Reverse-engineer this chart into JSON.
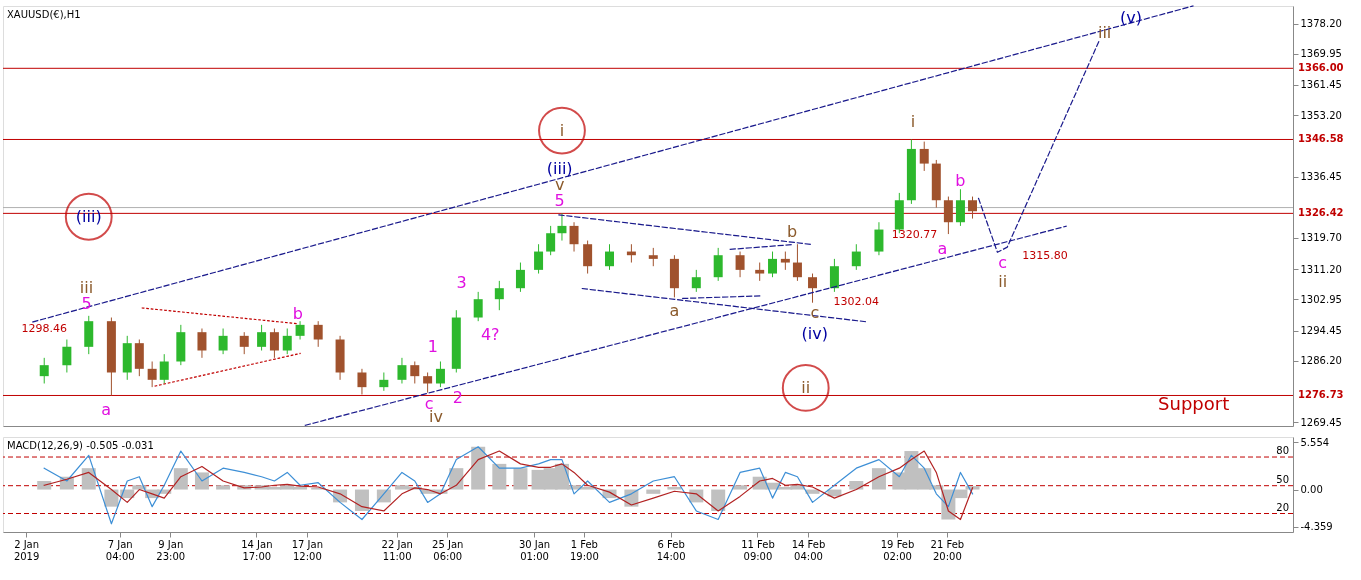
{
  "chart_data": [
    {
      "type": "candlestick",
      "title": "XAUUSD(€),H1",
      "x": [
        "2019-01-03T00:00",
        "2019-01-04T06:00",
        "2019-01-05T11:00",
        "2019-01-06T17:00",
        "2019-01-07T14:00",
        "2019-01-08T06:00",
        "2019-01-08T23:00",
        "2019-01-09T15:00",
        "2019-01-10T13:00",
        "2019-01-11T17:00",
        "2019-01-12T21:00",
        "2019-01-14T01:00",
        "2019-01-15T00:00",
        "2019-01-15T17:00",
        "2019-01-16T10:00",
        "2019-01-17T03:00",
        "2019-01-18T03:00",
        "2019-01-19T08:00",
        "2019-01-20T13:00",
        "2019-01-21T18:00",
        "2019-01-22T18:00",
        "2019-01-23T11:00",
        "2019-01-24T04:00",
        "2019-01-24T21:00",
        "2019-01-25T18:00",
        "2019-01-26T23:00",
        "2019-01-28T03:00",
        "2019-01-29T07:00",
        "2019-01-30T07:00",
        "2019-01-30T23:00",
        "2019-01-31T14:00",
        "2019-02-01T06:00",
        "2019-02-02T00:00",
        "2019-02-03T05:00",
        "2019-02-04T10:00",
        "2019-02-05T15:00",
        "2019-02-06T19:00",
        "2019-02-08T00:00",
        "2019-02-09T05:00",
        "2019-02-10T10:00",
        "2019-02-11T12:00",
        "2019-02-12T05:00",
        "2019-02-12T22:00",
        "2019-02-13T14:00",
        "2019-02-14T10:00",
        "2019-02-15T15:00",
        "2019-02-16T20:00",
        "2019-02-18T02:00",
        "2019-02-19T05:00",
        "2019-02-19T21:00",
        "2019-02-20T14:00",
        "2019-02-21T06:00",
        "2019-02-21T22:00",
        "2019-02-22T14:00",
        "2019-02-23T06:00"
      ],
      "ohlc": [
        [
          1282,
          1287,
          1280,
          1285
        ],
        [
          1285,
          1292,
          1283,
          1290
        ],
        [
          1290,
          1298.46,
          1288,
          1297
        ],
        [
          1297,
          1298,
          1276.7,
          1283
        ],
        [
          1283,
          1293,
          1281,
          1291
        ],
        [
          1291,
          1292,
          1282,
          1284
        ],
        [
          1284,
          1286,
          1279,
          1281
        ],
        [
          1281,
          1288,
          1280,
          1286
        ],
        [
          1286,
          1296,
          1285,
          1294
        ],
        [
          1294,
          1295,
          1287,
          1289
        ],
        [
          1289,
          1295,
          1288,
          1293
        ],
        [
          1293,
          1294,
          1288,
          1290
        ],
        [
          1290,
          1296,
          1289,
          1294
        ],
        [
          1294,
          1295,
          1287,
          1289
        ],
        [
          1289,
          1295,
          1288,
          1293
        ],
        [
          1293,
          1297,
          1292,
          1296
        ],
        [
          1296,
          1297,
          1290,
          1292
        ],
        [
          1292,
          1293,
          1281,
          1283
        ],
        [
          1283,
          1284,
          1277,
          1279
        ],
        [
          1279,
          1283,
          1278,
          1281
        ],
        [
          1281,
          1287,
          1280,
          1285
        ],
        [
          1285,
          1286,
          1280,
          1282
        ],
        [
          1282,
          1283,
          1277.5,
          1280
        ],
        [
          1280,
          1286,
          1279,
          1284
        ],
        [
          1284,
          1300,
          1283,
          1298
        ],
        [
          1298,
          1305,
          1297,
          1303
        ],
        [
          1303,
          1308,
          1300,
          1306
        ],
        [
          1306,
          1313,
          1305,
          1311
        ],
        [
          1311,
          1318,
          1310,
          1316
        ],
        [
          1316,
          1323,
          1315,
          1321
        ],
        [
          1321,
          1326.4,
          1319,
          1323
        ],
        [
          1323,
          1324,
          1316,
          1318
        ],
        [
          1318,
          1319,
          1310,
          1312
        ],
        [
          1312,
          1318,
          1311,
          1316
        ],
        [
          1316,
          1318,
          1313,
          1315
        ],
        [
          1315,
          1317,
          1312,
          1314
        ],
        [
          1314,
          1315,
          1303.5,
          1306
        ],
        [
          1306,
          1311,
          1305,
          1309
        ],
        [
          1309,
          1317,
          1308,
          1315
        ],
        [
          1315,
          1316,
          1309,
          1311
        ],
        [
          1311,
          1313,
          1308,
          1310
        ],
        [
          1310,
          1316,
          1309,
          1314
        ],
        [
          1314,
          1316,
          1311,
          1313
        ],
        [
          1313,
          1318,
          1308,
          1309
        ],
        [
          1309,
          1310,
          1302.04,
          1306
        ],
        [
          1306,
          1314,
          1305,
          1312
        ],
        [
          1312,
          1318,
          1311,
          1316
        ],
        [
          1316,
          1324,
          1315,
          1322
        ],
        [
          1322,
          1332,
          1321,
          1330
        ],
        [
          1330,
          1346.58,
          1329,
          1344
        ],
        [
          1344,
          1346,
          1338,
          1340
        ],
        [
          1340,
          1341,
          1328,
          1330
        ],
        [
          1330,
          1331,
          1320.77,
          1324
        ],
        [
          1324,
          1333,
          1323,
          1330
        ],
        [
          1330,
          1331,
          1325,
          1327
        ]
      ],
      "series": [
        {
          "type": "line",
          "x": [
            "2019-01-02T09:00",
            "2019-03-07T10:00"
          ],
          "values": [
            1296.8,
            1383
          ],
          "color": "#1a1a8c",
          "line_style": "dashed"
        },
        {
          "type": "line",
          "x": [
            "2019-01-17T10:00",
            "2019-02-28T10:00"
          ],
          "values": [
            1268.6,
            1322.9
          ],
          "color": "#1a1a8c",
          "line_style": "dashed"
        },
        {
          "type": "line",
          "x": [
            "2019-02-01T17:00",
            "2019-02-17T11:00"
          ],
          "values": [
            1305.9,
            1296.8
          ],
          "color": "#1a1a8c",
          "line_style": "dashed"
        },
        {
          "type": "line",
          "x": [
            "2019-01-31T10:00",
            "2019-02-14T10:00"
          ],
          "values": [
            1326,
            1317.9
          ],
          "color": "#1a1a8c",
          "line_style": "dashed"
        },
        {
          "type": "line",
          "x": [
            "2019-02-09T21:00",
            "2019-02-13T08:00"
          ],
          "values": [
            1316.6,
            1317.9
          ],
          "color": "#1a1a8c",
          "line_style": "dashed"
        },
        {
          "type": "line",
          "x": [
            "2019-02-07T06:00",
            "2019-02-11T14:00"
          ],
          "values": [
            1303.2,
            1303.9
          ],
          "color": "#1a1a8c",
          "line_style": "dashed"
        },
        {
          "type": "line",
          "x": [
            "2019-01-08T10:00",
            "2019-01-17T00:00"
          ],
          "values": [
            1300.6,
            1296.3
          ],
          "color": "#c00000",
          "line_style": "dotted"
        },
        {
          "type": "line",
          "x": [
            "2019-01-09T03:00",
            "2019-01-17T03:00"
          ],
          "values": [
            1279.3,
            1288.2
          ],
          "color": "#c00000",
          "line_style": "dotted"
        },
        {
          "type": "line",
          "x": [
            "2019-02-23T14:00",
            "2019-02-24T15:00",
            "2019-02-25T04:00",
            "2019-03-02T06:00"
          ],
          "values": [
            1330.5,
            1315.8,
            1317.2,
            1373.6
          ],
          "color": "#1a1a8c",
          "line_style": "dashed"
        }
      ],
      "xlim": [
        "2019-01-01T00:00",
        "2019-03-12T16:00"
      ],
      "ylim": [
        1268.4,
        1383.0
      ],
      "yticks": [
        1269.45,
        {
          "value": 1286.2,
          "label": "1286.20"
        },
        1294.45,
        1302.95,
        {
          "value": 1311.2,
          "label": "1311.20"
        },
        {
          "value": 1319.7,
          "label": "1319.70"
        },
        1336.45,
        {
          "value": 1353.2,
          "label": "1353.20"
        },
        1361.45,
        1369.95,
        {
          "value": 1378.2,
          "label": "1378.20"
        }
      ],
      "tick_labels": "y",
      "ref_lines": [
        {
          "axis": "y",
          "value": 1366.0,
          "label": "1366.00",
          "color": "#c00000"
        },
        {
          "axis": "y",
          "value": 1346.58,
          "label": "1346.58",
          "color": "#c00000"
        },
        {
          "axis": "y",
          "value": 1328.0,
          "color": "#b0b0b0"
        },
        {
          "axis": "y",
          "value": 1326.42,
          "label": "1326.42",
          "color": "#c00000"
        },
        {
          "axis": "y",
          "value": 1276.73,
          "label": "1276.73",
          "color": "#c00000"
        }
      ],
      "annotations": [
        "(iii)",
        "iii",
        "5",
        "1298.46",
        "a",
        "b",
        "1",
        "2",
        "c",
        "iv",
        "3",
        "4?",
        "5",
        "v",
        "(iii)",
        "i",
        "a",
        "b",
        "c",
        "(iv)",
        "ii",
        "1302.04",
        "1320.77",
        "i",
        "a",
        "b",
        "c",
        "ii",
        "1315.80",
        "iii",
        "(v)",
        "Support"
      ]
    },
    {
      "type": "bar",
      "title": "MACD(12,26,9) -0.505 -0.031",
      "x": [
        "2019-01-03T00:00",
        "2019-01-04T06:00",
        "2019-01-05T11:00",
        "2019-01-06T17:00",
        "2019-01-07T14:00",
        "2019-01-08T06:00",
        "2019-01-08T23:00",
        "2019-01-09T15:00",
        "2019-01-10T13:00",
        "2019-01-11T17:00",
        "2019-01-12T21:00",
        "2019-01-14T01:00",
        "2019-01-15T00:00",
        "2019-01-15T17:00",
        "2019-01-16T10:00",
        "2019-01-17T03:00",
        "2019-01-18T03:00",
        "2019-01-19T08:00",
        "2019-01-20T13:00",
        "2019-01-21T18:00",
        "2019-01-22T18:00",
        "2019-01-23T11:00",
        "2019-01-24T04:00",
        "2019-01-24T21:00",
        "2019-01-25T18:00",
        "2019-01-26T23:00",
        "2019-01-28T03:00",
        "2019-01-29T07:00",
        "2019-01-30T07:00",
        "2019-01-30T23:00",
        "2019-01-31T14:00",
        "2019-02-01T06:00",
        "2019-02-02T00:00",
        "2019-02-03T05:00",
        "2019-02-04T10:00",
        "2019-02-05T15:00",
        "2019-02-06T19:00",
        "2019-02-08T00:00",
        "2019-02-09T05:00",
        "2019-02-10T10:00",
        "2019-02-11T12:00",
        "2019-02-12T05:00",
        "2019-02-12T22:00",
        "2019-02-13T14:00",
        "2019-02-14T10:00",
        "2019-02-15T15:00",
        "2019-02-16T20:00",
        "2019-02-18T02:00",
        "2019-02-19T05:00",
        "2019-02-19T21:00",
        "2019-02-20T14:00",
        "2019-02-21T06:00",
        "2019-02-21T22:00",
        "2019-02-22T14:00",
        "2019-02-23T06:00"
      ],
      "series": [
        {
          "type": "bar",
          "color": "#c0c0c0",
          "values": [
            1.0,
            1.5,
            2.5,
            -2.0,
            -1,
            0.5,
            -1.0,
            -0.5,
            2.5,
            2.0,
            0.5,
            0.5,
            0.5,
            0.3,
            0.5,
            0.3,
            0.2,
            -1.5,
            -2.5,
            -1.5,
            0.5,
            0.3,
            -0.5,
            -0.5,
            2.5,
            5.0,
            3.0,
            2.5,
            2.3,
            2.5,
            3.0,
            0.5,
            0.3,
            -1.0,
            -2.0,
            -0.5,
            0.3,
            -1.5,
            -2.5,
            0.5,
            1.5,
            0.8,
            0.3,
            0.5,
            -0.5,
            -0.8,
            1.0,
            2.5,
            2.0,
            4.5,
            2.5,
            0.5,
            -3.5,
            -1.0,
            0.4
          ]
        },
        {
          "type": "line",
          "color": "#3d8fd6",
          "values": [
            2.5,
            1.0,
            4.0,
            -4.0,
            1.0,
            1.5,
            -2.0,
            0.5,
            4.5,
            1.0,
            2.5,
            2.0,
            1.5,
            1.0,
            2.0,
            0.5,
            0.8,
            -1.5,
            -3.5,
            -0.5,
            2.0,
            1.0,
            -1.5,
            -0.5,
            3.5,
            5.0,
            2.5,
            2.5,
            3.0,
            3.5,
            3.5,
            -0.5,
            1.0,
            -1.5,
            -0.5,
            1.0,
            1.5,
            -2.5,
            -3.5,
            2.0,
            2.5,
            -1.0,
            2.0,
            1.5,
            -1.5,
            0.5,
            2.5,
            3.5,
            1.5,
            4.0,
            2.5,
            -0.5,
            -2.0,
            2.0,
            -0.5
          ]
        },
        {
          "type": "line",
          "color": "#b22222",
          "values": [
            0.5,
            1.2,
            2.0,
            0,
            -1.5,
            0.0,
            -0.5,
            -1.0,
            1.5,
            2.7,
            1.0,
            0.2,
            0.3,
            0.5,
            0.6,
            0.4,
            0.3,
            -0.5,
            -2.0,
            -2.5,
            -0.5,
            0.2,
            0.0,
            -0.5,
            0.5,
            3.5,
            4.5,
            3.0,
            2.6,
            2.6,
            3.0,
            2.0,
            0.5,
            -0.3,
            -1.8,
            -1.0,
            -0.2,
            -0.5,
            -2.5,
            -0.8,
            1.0,
            1.3,
            0.5,
            0.6,
            0.3,
            -1.0,
            0.0,
            1.5,
            2.5,
            3.5,
            4.5,
            2.0,
            -2.5,
            -3.5,
            0.2
          ]
        }
      ],
      "xlim": [
        "2019-01-01T00:00",
        "2019-03-12T16:00"
      ],
      "ylim": [
        -4.96,
        6.14
      ],
      "xticks": [
        {
          "value": "2019-01-02T00:00",
          "label": "2 Jan 2019"
        },
        {
          "value": "2019-01-07T04:00",
          "label": "7 Jan 04:00"
        },
        {
          "value": "2019-01-09T23:00",
          "label": "9 Jan 23:00"
        },
        {
          "value": "2019-01-14T17:00",
          "label": "14 Jan 17:00"
        },
        {
          "value": "2019-01-17T12:00",
          "label": "17 Jan 12:00"
        },
        {
          "value": "2019-01-22T11:00",
          "label": "22 Jan 11:00"
        },
        {
          "value": "2019-01-25T06:00",
          "label": "25 Jan 06:00"
        },
        {
          "value": "2019-01-30T01:00",
          "label": "30 Jan 01:00"
        },
        {
          "value": "2019-02-01T19:00",
          "label": "1 Feb 19:00"
        },
        {
          "value": "2019-02-06T14:00",
          "label": "6 Feb 14:00"
        },
        {
          "value": "2019-02-11T09:00",
          "label": "11 Feb 09:00"
        },
        {
          "value": "2019-02-14T04:00",
          "label": "14 Feb 04:00"
        },
        {
          "value": "2019-02-19T02:00",
          "label": "19 Feb 02:00"
        },
        {
          "value": "2019-02-21T20:00",
          "label": "21 Feb 20:00"
        }
      ],
      "yticks": [
        5.554,
        {
          "value": 0,
          "label": "0.00"
        },
        -4.359
      ],
      "annotations": [
        "80",
        "50",
        "20"
      ],
      "ref_lines": [
        {
          "axis": "y",
          "value": 3.8,
          "color": "#c00000",
          "line_style": "dashed"
        },
        {
          "axis": "y",
          "value": 0.45,
          "color": "#c00000",
          "line_style": "dashed"
        },
        {
          "axis": "y",
          "value": -2.8,
          "color": "#c00000",
          "line_style": "dashed"
        }
      ]
    }
  ]
}
